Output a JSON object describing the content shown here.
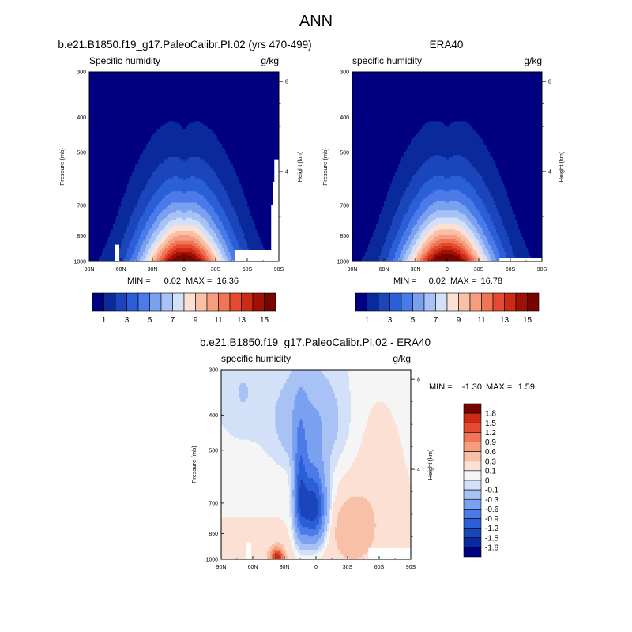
{
  "figure_title": "ANN",
  "chart_data": [
    {
      "type": "heatmap",
      "panel": "model",
      "title": "b.e21.B1850.f19_g17.PaleoCalibr.PI.02 (yrs 470-499)",
      "left_label": "Specific humidity",
      "units": "g/kg",
      "xlabel": "",
      "ylabel": "Pressure (mb)",
      "y2label": "Height (km)",
      "x_ticks": [
        "90N",
        "60N",
        "30N",
        "0",
        "30S",
        "60S",
        "90S"
      ],
      "y_ticks": [
        "300",
        "400",
        "500",
        "700",
        "850",
        "1000"
      ],
      "y2_ticks": [
        "8",
        "4"
      ],
      "min_label": "MIN =",
      "min": "0.02",
      "max_label": "MAX =",
      "max": "16.36",
      "peak_value": 16.36,
      "legend_ticks": [
        "1",
        "3",
        "5",
        "7",
        "9",
        "11",
        "13",
        "15"
      ],
      "levels": [
        1,
        2,
        3,
        4,
        5,
        6,
        7,
        8,
        9,
        10,
        11,
        12,
        13,
        14,
        15
      ]
    },
    {
      "type": "heatmap",
      "panel": "obs",
      "title": "ERA40",
      "left_label": "specific humidity",
      "units": "g/kg",
      "xlabel": "",
      "ylabel": "Pressure (mb)",
      "y2label": "Height (km)",
      "x_ticks": [
        "90N",
        "60N",
        "30N",
        "0",
        "30S",
        "60S",
        "90S"
      ],
      "y_ticks": [
        "300",
        "400",
        "500",
        "700",
        "850",
        "1000"
      ],
      "y2_ticks": [
        "8",
        "4"
      ],
      "min_label": "MIN =",
      "min": "0.02",
      "max_label": "MAX =",
      "max": "16.78",
      "peak_value": 16.78,
      "legend_ticks": [
        "1",
        "3",
        "5",
        "7",
        "9",
        "11",
        "13",
        "15"
      ],
      "levels": [
        1,
        2,
        3,
        4,
        5,
        6,
        7,
        8,
        9,
        10,
        11,
        12,
        13,
        14,
        15
      ]
    },
    {
      "type": "heatmap",
      "panel": "difference",
      "title": "b.e21.B1850.f19_g17.PaleoCalibr.PI.02 - ERA40",
      "left_label": "specific humidity",
      "units": "g/kg",
      "xlabel": "",
      "ylabel": "Pressure (mb)",
      "y2label": "Height (km)",
      "x_ticks": [
        "90N",
        "60N",
        "30N",
        "0",
        "30S",
        "60S",
        "90S"
      ],
      "y_ticks": [
        "300",
        "400",
        "500",
        "700",
        "850",
        "1000"
      ],
      "y2_ticks": [
        "8",
        "4"
      ],
      "min_label": "MIN =",
      "min": "-1.30",
      "max_label": "MAX =",
      "max": "1.59",
      "legend_ticks": [
        "1.8",
        "1.5",
        "1.2",
        "0.9",
        "0.6",
        "0.3",
        "0.1",
        "0",
        "-0.1",
        "-0.3",
        "-0.6",
        "-0.9",
        "-1.2",
        "-1.5",
        "-1.8"
      ],
      "levels": [
        -1.8,
        -1.5,
        -1.2,
        -0.9,
        -0.6,
        -0.3,
        -0.1,
        0,
        0.1,
        0.3,
        0.6,
        0.9,
        1.2,
        1.5,
        1.8
      ]
    }
  ],
  "colors": {
    "sequential": [
      "#000080",
      "#0a2a9c",
      "#1a45bb",
      "#2a5fd8",
      "#4a7be8",
      "#7aa0f0",
      "#a8c2f5",
      "#d2e0f8",
      "#fbe0d3",
      "#f8c0a6",
      "#f59d7e",
      "#ef7555",
      "#e34a2f",
      "#cc2a14",
      "#a01004",
      "#780400"
    ],
    "diverging": [
      "#000080",
      "#0a2a9c",
      "#1a45bb",
      "#2a5fd8",
      "#4a7be8",
      "#7aa0f0",
      "#a8c2f5",
      "#d2e0f8",
      "#f5f5f5",
      "#fbe0d3",
      "#f8c0a6",
      "#f59d7e",
      "#ef7555",
      "#e34a2f",
      "#cc2a14",
      "#780400"
    ]
  }
}
